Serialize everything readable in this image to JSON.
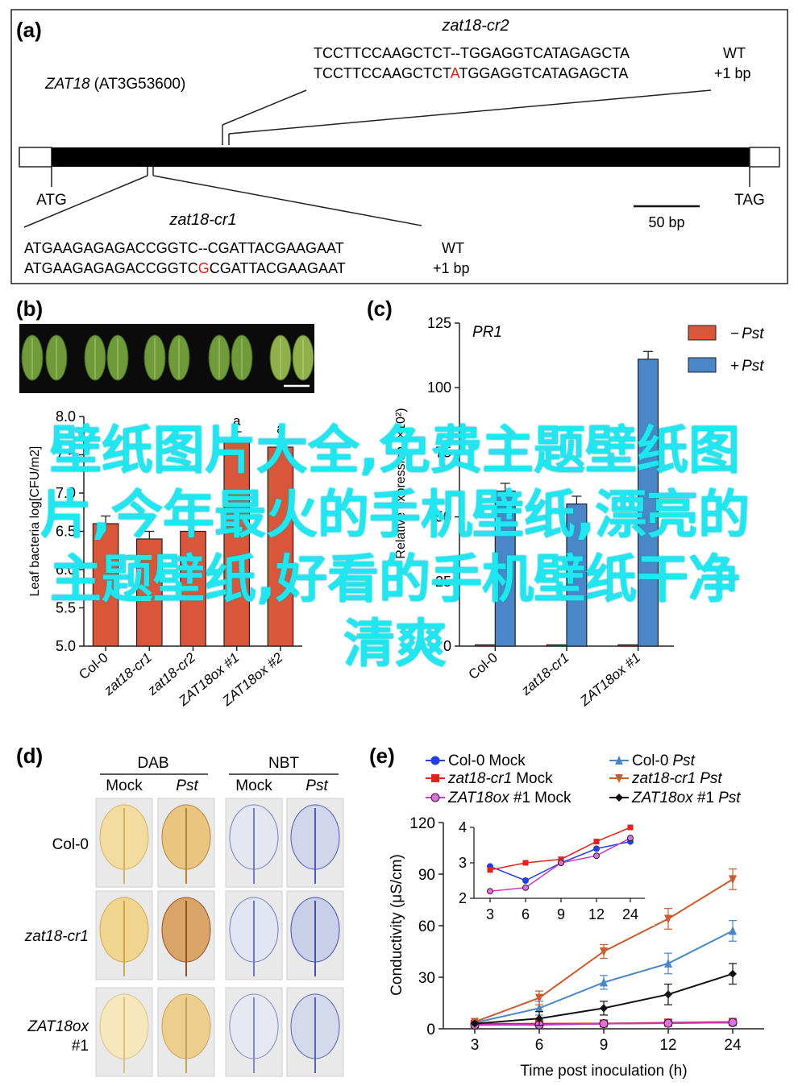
{
  "panel_a": {
    "letter": "(a)",
    "gene_label": "ZAT18",
    "gene_locus": "(AT3G53600)",
    "start_codon": "ATG",
    "stop_codon": "TAG",
    "scale_bar": "50 bp",
    "cr2": {
      "name": "zat18-cr2",
      "wt_seq": "TCCTTCCAAGCTCT--TGGAGGTCATAGAGCTA",
      "wt_label": "WT",
      "mut_seq_pre": "TCCTTCCAAGCTCT",
      "mut_ins": "A",
      "mut_seq_post": "TGGAGGTCATAGAGCTA",
      "mut_label": "+1 bp"
    },
    "cr1": {
      "name": "zat18-cr1",
      "wt_seq": "ATGAAGAGAGACCGGTC--CGATTACGAAGAAT",
      "wt_label": "WT",
      "mut_seq_pre": "ATGAAGAGAGACCGGTC",
      "mut_ins": "G",
      "mut_seq_post": "CGATTACGAAGAAT",
      "mut_label": "+1 bp"
    },
    "colors": {
      "insertion": "#e8201a",
      "gene_bar": "#000000"
    }
  },
  "panel_b": {
    "letter": "(b)",
    "ylabel": "Leaf bacteria log[CFU/m2]",
    "sig_labels": [
      "a",
      "a"
    ],
    "chart_data": {
      "type": "bar",
      "categories": [
        "Col-0",
        "zat18-cr1",
        "zat18-cr2",
        "ZAT18ox #1",
        "ZAT18ox #2"
      ],
      "values": [
        6.6,
        6.4,
        6.5,
        7.7,
        7.6
      ],
      "errors": [
        0.1,
        0.1,
        0.1,
        0.1,
        0.1
      ],
      "ylim": [
        5.0,
        8.0
      ],
      "yticks": [
        "5.0",
        "5.5",
        "6.0",
        "6.5",
        "7.0",
        "7.5",
        "8.0"
      ],
      "ylabel": "Leaf bacteria log[CFU/m2]",
      "color": "#d9563a"
    }
  },
  "panel_c": {
    "letter": "(c)",
    "title": "PR1",
    "ylabel": "Relative expression (×10²)",
    "legend": [
      {
        "sign": "−",
        "name": "Pst",
        "color": "#d9563a"
      },
      {
        "sign": "+",
        "name": "Pst",
        "color": "#4a86c8"
      }
    ],
    "chart_data": {
      "type": "bar",
      "categories": [
        "Col-0",
        "zat18-cr1",
        "ZAT18ox #1"
      ],
      "series": [
        {
          "name": "− Pst",
          "values": [
            0.5,
            0.5,
            0.5
          ]
        },
        {
          "name": "+ Pst",
          "values": [
            60,
            55,
            111
          ]
        }
      ],
      "errors_plus": [
        3,
        3,
        3
      ],
      "ylim": [
        0,
        125
      ],
      "yticks": [
        "0",
        "25",
        "50",
        "75",
        "100",
        "125"
      ],
      "ylabel": "Relative expression (×10²)"
    }
  },
  "panel_d": {
    "letter": "(d)",
    "groups": [
      "DAB",
      "NBT"
    ],
    "columns": [
      "Mock",
      "Pst",
      "Mock",
      "Pst"
    ],
    "rows": [
      "Col-0",
      "zat18-cr1",
      "ZAT18ox",
      "#1"
    ]
  },
  "panel_e": {
    "letter": "(e)",
    "xlabel": "Time post inoculation (h)",
    "ylabel": "Conductivity (μS/cm)",
    "legend": [
      {
        "label": "Col-0 Mock",
        "color": "#1f3fe0",
        "marker": "circle"
      },
      {
        "label": "Col-0 Pst",
        "color": "#4a86c8",
        "marker": "triangle-up"
      },
      {
        "label": "zat18-cr1 Mock",
        "color": "#e8201a",
        "marker": "square"
      },
      {
        "label": "zat18-cr1 Pst",
        "color": "#cd5a2c",
        "marker": "triangle-down"
      },
      {
        "label": "ZAT18ox #1 Mock",
        "color": "#c63ac6",
        "marker": "circle"
      },
      {
        "label": "ZAT18ox #1 Pst",
        "color": "#111111",
        "marker": "diamond"
      }
    ],
    "chart_data": {
      "type": "line",
      "x": [
        3,
        6,
        9,
        12,
        24
      ],
      "xticks": [
        "3",
        "6",
        "9",
        "12",
        "24"
      ],
      "ylim": [
        0,
        120
      ],
      "yticks": [
        "0",
        "30",
        "60",
        "90",
        "120"
      ],
      "series": [
        {
          "name": "Col-0 Mock",
          "values": [
            2.9,
            2.5,
            3.0,
            3.4,
            3.6
          ]
        },
        {
          "name": "Col-0 Pst",
          "values": [
            3.5,
            12,
            27,
            38,
            57
          ]
        },
        {
          "name": "zat18-cr1 Mock",
          "values": [
            2.8,
            3.0,
            3.1,
            3.6,
            4.0
          ]
        },
        {
          "name": "zat18-cr1 Pst",
          "values": [
            4,
            18,
            45,
            64,
            87
          ]
        },
        {
          "name": "ZAT18ox #1 Mock",
          "values": [
            2.2,
            2.3,
            3.0,
            3.2,
            3.7
          ]
        },
        {
          "name": "ZAT18ox #1 Pst",
          "values": [
            3,
            6,
            12,
            20,
            32
          ]
        }
      ],
      "errors": [
        0.3,
        4,
        4,
        6,
        6
      ],
      "inset": {
        "ylim": [
          2,
          4
        ],
        "yticks": [
          "2",
          "3",
          "4"
        ],
        "series_indices": [
          0,
          2,
          4
        ]
      }
    }
  },
  "overlay": {
    "text": "壁纸图片大全,免费主题壁纸图片,今年最火的手机壁纸,漂亮的主题壁纸,好看的手机壁纸干净清爽",
    "color": "#1fe6f0"
  }
}
